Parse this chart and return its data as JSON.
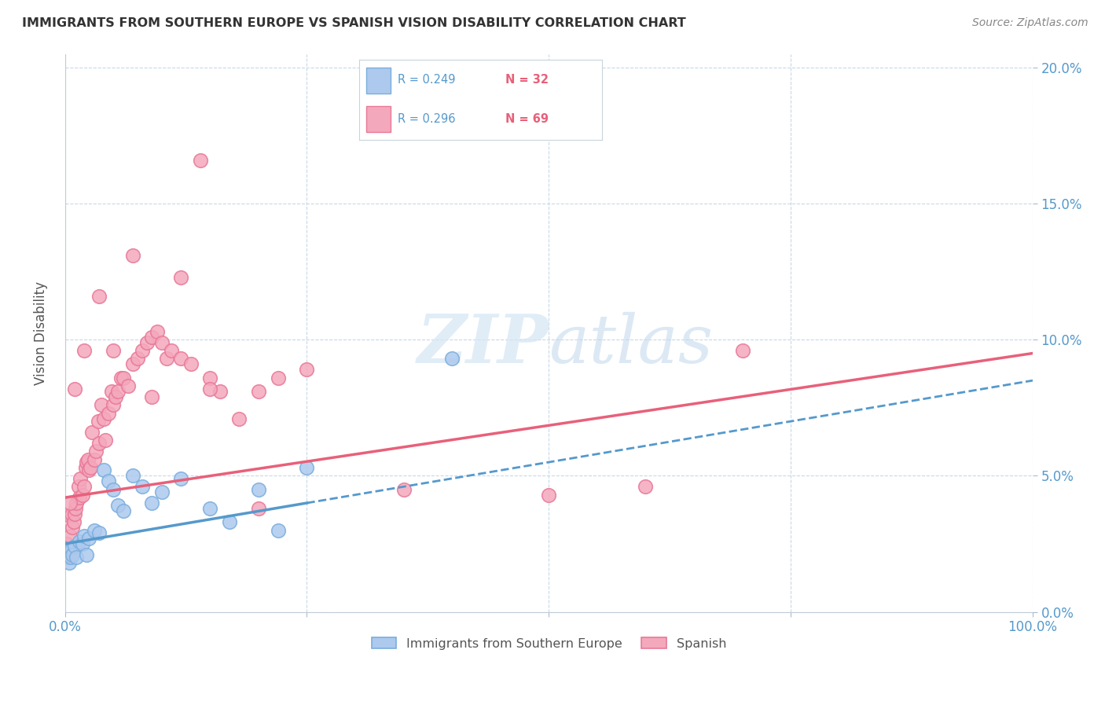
{
  "title": "IMMIGRANTS FROM SOUTHERN EUROPE VS SPANISH VISION DISABILITY CORRELATION CHART",
  "source": "Source: ZipAtlas.com",
  "ylabel": "Vision Disability",
  "ytick_vals": [
    0.0,
    5.0,
    10.0,
    15.0,
    20.0
  ],
  "xlim": [
    0.0,
    100.0
  ],
  "ylim": [
    0.0,
    20.5
  ],
  "watermark": "ZIPatlas",
  "legend_blue_r": "R = 0.249",
  "legend_blue_n": "N = 32",
  "legend_pink_r": "R = 0.296",
  "legend_pink_n": "N = 69",
  "legend_label_blue": "Immigrants from Southern Europe",
  "legend_label_pink": "Spanish",
  "blue_fill": "#adc9ee",
  "pink_fill": "#f4a8bc",
  "blue_edge": "#7aaedd",
  "pink_edge": "#e87898",
  "blue_line_color": "#5599cc",
  "pink_line_color": "#e8607a",
  "title_color": "#333333",
  "source_color": "#888888",
  "tick_color": "#5599cc",
  "legend_r_color": "#5599cc",
  "legend_n_color": "#e8607a",
  "grid_color": "#c8d8e8",
  "blue_scatter_x": [
    0.2,
    0.3,
    0.4,
    0.5,
    0.6,
    0.7,
    0.8,
    1.0,
    1.2,
    1.5,
    1.8,
    2.0,
    2.2,
    2.5,
    3.0,
    3.5,
    4.0,
    4.5,
    5.0,
    5.5,
    6.0,
    7.0,
    8.0,
    9.0,
    10.0,
    12.0,
    15.0,
    17.0,
    20.0,
    22.0,
    25.0,
    40.0
  ],
  "blue_scatter_y": [
    2.0,
    2.2,
    1.8,
    2.1,
    2.0,
    2.3,
    2.1,
    2.4,
    2.0,
    2.6,
    2.5,
    2.8,
    2.1,
    2.7,
    3.0,
    2.9,
    5.2,
    4.8,
    4.5,
    3.9,
    3.7,
    5.0,
    4.6,
    4.0,
    4.4,
    4.9,
    3.8,
    3.3,
    4.5,
    3.0,
    5.3,
    9.3
  ],
  "pink_scatter_x": [
    0.2,
    0.3,
    0.4,
    0.5,
    0.6,
    0.7,
    0.8,
    0.9,
    1.0,
    1.1,
    1.2,
    1.4,
    1.5,
    1.6,
    1.8,
    2.0,
    2.1,
    2.2,
    2.4,
    2.5,
    2.6,
    2.8,
    3.0,
    3.2,
    3.4,
    3.5,
    3.8,
    4.0,
    4.2,
    4.5,
    4.8,
    5.0,
    5.2,
    5.5,
    5.8,
    6.0,
    6.5,
    7.0,
    7.5,
    8.0,
    8.5,
    9.0,
    9.5,
    10.0,
    10.5,
    11.0,
    12.0,
    13.0,
    14.0,
    15.0,
    16.0,
    18.0,
    20.0,
    22.0,
    25.0,
    35.0,
    50.0,
    60.0,
    70.0,
    0.5,
    1.0,
    2.0,
    3.5,
    5.0,
    7.0,
    9.0,
    12.0,
    15.0,
    20.0
  ],
  "pink_scatter_y": [
    2.5,
    2.0,
    2.3,
    2.8,
    3.5,
    3.6,
    3.1,
    3.3,
    3.6,
    3.8,
    4.0,
    4.6,
    4.2,
    4.9,
    4.3,
    4.6,
    5.3,
    5.5,
    5.6,
    5.2,
    5.3,
    6.6,
    5.6,
    5.9,
    7.0,
    6.2,
    7.6,
    7.1,
    6.3,
    7.3,
    8.1,
    7.6,
    7.9,
    8.1,
    8.6,
    8.6,
    8.3,
    9.1,
    9.3,
    9.6,
    9.9,
    10.1,
    10.3,
    9.9,
    9.3,
    9.6,
    9.3,
    9.1,
    16.6,
    8.6,
    8.1,
    7.1,
    8.1,
    8.6,
    8.9,
    4.5,
    4.3,
    4.6,
    9.6,
    4.0,
    8.2,
    9.6,
    11.6,
    9.6,
    13.1,
    7.9,
    12.3,
    8.2,
    3.8
  ],
  "pink_line_start_y": 4.2,
  "pink_line_end_y": 9.5,
  "blue_line_start_y": 2.5,
  "blue_line_end_y": 8.5
}
